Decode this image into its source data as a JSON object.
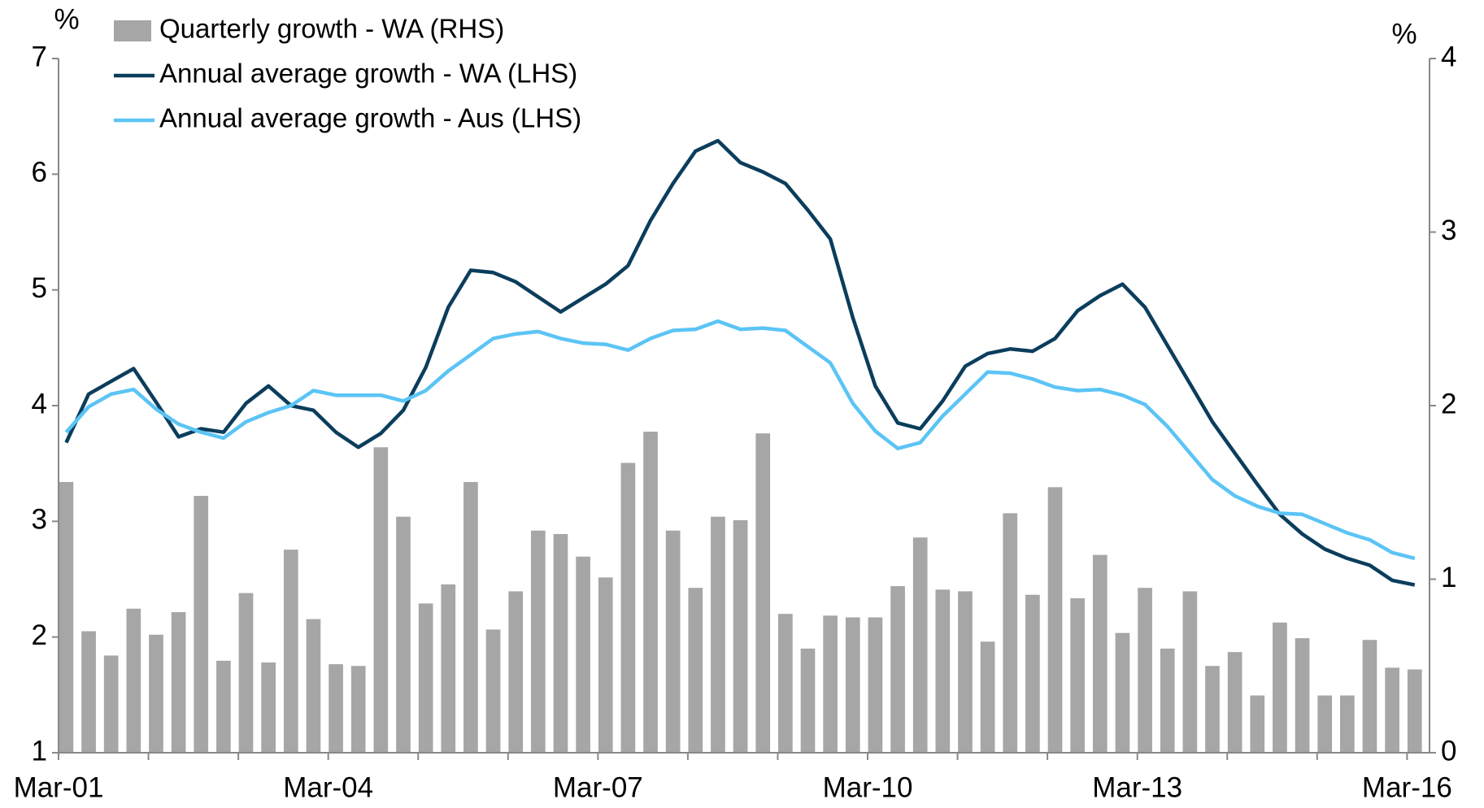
{
  "chart_data": {
    "type": "combo",
    "ylabel": "%",
    "y2label": "%",
    "categories": [
      "Mar-01",
      null,
      null,
      null,
      null,
      null,
      null,
      null,
      null,
      null,
      null,
      null,
      "Mar-04",
      null,
      null,
      null,
      null,
      null,
      null,
      null,
      null,
      null,
      null,
      null,
      "Mar-07",
      null,
      null,
      null,
      null,
      null,
      null,
      null,
      null,
      null,
      null,
      null,
      "Mar-10",
      null,
      null,
      null,
      null,
      null,
      null,
      null,
      null,
      null,
      null,
      null,
      "Mar-13",
      null,
      null,
      null,
      null,
      null,
      null,
      null,
      null,
      null,
      null,
      null,
      "Mar-16"
    ],
    "series": [
      {
        "name": "Quarterly growth - WA (RHS)",
        "type": "bar",
        "axis": "y2",
        "color": "#a6a6a6",
        "values": [
          1.56,
          0.7,
          0.56,
          0.83,
          0.68,
          0.81,
          1.48,
          0.53,
          0.92,
          0.52,
          1.17,
          0.77,
          0.51,
          0.5,
          1.76,
          1.36,
          0.86,
          0.97,
          1.56,
          0.71,
          0.93,
          1.28,
          1.26,
          1.13,
          1.01,
          1.67,
          1.85,
          1.28,
          0.95,
          1.36,
          1.34,
          1.84,
          0.8,
          0.6,
          0.79,
          0.78,
          0.78,
          0.96,
          1.24,
          0.94,
          0.93,
          0.64,
          1.38,
          0.91,
          1.53,
          0.89,
          1.14,
          0.69,
          0.95,
          0.6,
          0.93,
          0.5,
          0.58,
          0.33,
          0.75,
          0.66,
          0.33,
          0.33,
          0.65,
          0.49,
          0.48
        ]
      },
      {
        "name": "Annual average growth - WA (LHS)",
        "type": "line",
        "color": "#0b3d5c",
        "values": [
          3.68,
          4.1,
          4.21,
          4.32,
          4.03,
          3.73,
          3.8,
          3.77,
          4.02,
          4.17,
          4.0,
          3.96,
          3.77,
          3.64,
          3.76,
          3.96,
          4.33,
          4.85,
          5.17,
          5.15,
          5.07,
          4.94,
          4.81,
          4.93,
          5.05,
          5.21,
          5.6,
          5.92,
          6.2,
          6.29,
          6.1,
          6.02,
          5.92,
          5.69,
          5.44,
          4.76,
          4.17,
          3.85,
          3.8,
          4.04,
          4.34,
          4.45,
          4.49,
          4.47,
          4.58,
          4.82,
          4.95,
          5.05,
          4.85,
          4.52,
          4.19,
          3.86,
          3.59,
          3.32,
          3.06,
          2.89,
          2.76,
          2.68,
          2.62,
          2.49,
          2.45
        ]
      },
      {
        "name": "Annual average growth - Aus (LHS)",
        "type": "line",
        "color": "#5bc4f5",
        "values": [
          3.77,
          3.99,
          4.1,
          4.14,
          3.97,
          3.84,
          3.77,
          3.72,
          3.86,
          3.94,
          4.0,
          4.13,
          4.09,
          4.09,
          4.09,
          4.04,
          4.13,
          4.3,
          4.44,
          4.58,
          4.62,
          4.64,
          4.58,
          4.54,
          4.53,
          4.48,
          4.58,
          4.65,
          4.66,
          4.73,
          4.66,
          4.67,
          4.65,
          4.51,
          4.37,
          4.02,
          3.78,
          3.63,
          3.68,
          3.91,
          4.1,
          4.29,
          4.28,
          4.23,
          4.16,
          4.13,
          4.14,
          4.09,
          4.01,
          3.82,
          3.59,
          3.36,
          3.22,
          3.13,
          3.07,
          3.06,
          2.98,
          2.9,
          2.84,
          2.73,
          2.68
        ]
      }
    ],
    "ylim": [
      1,
      7
    ],
    "yticks": [
      1,
      2,
      3,
      4,
      5,
      6,
      7
    ],
    "y2lim": [
      0,
      4
    ],
    "y2ticks": [
      0,
      1,
      2,
      3,
      4
    ],
    "legend": "top-left"
  }
}
